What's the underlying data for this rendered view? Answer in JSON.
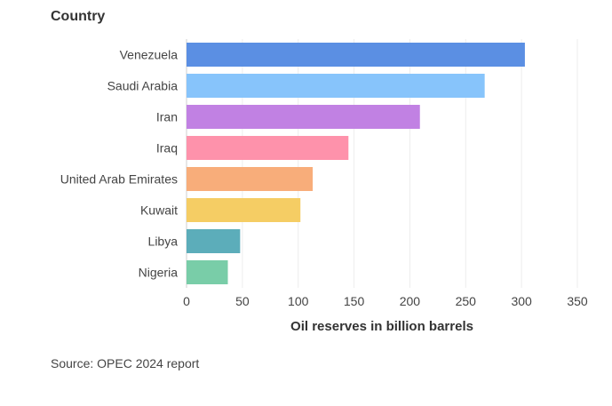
{
  "chart_data": {
    "type": "bar",
    "orientation": "horizontal",
    "ylabel": "Country",
    "xlabel": "Oil reserves in billion barrels",
    "categories": [
      "Venezuela",
      "Saudi Arabia",
      "Iran",
      "Iraq",
      "United Arab Emirates",
      "Kuwait",
      "Libya",
      "Nigeria"
    ],
    "values": [
      303,
      267,
      209,
      145,
      113,
      102,
      48,
      37
    ],
    "colors": [
      "#5b8fe3",
      "#87c4fb",
      "#c181e3",
      "#fe92ab",
      "#f8ad7a",
      "#f5cd64",
      "#5cadba",
      "#79cda8"
    ],
    "xlim": [
      0,
      350
    ],
    "xticks": [
      "0",
      "50",
      "100",
      "150",
      "200",
      "250",
      "300",
      "350"
    ],
    "grid": true
  },
  "source": "Source: OPEC 2024 report"
}
